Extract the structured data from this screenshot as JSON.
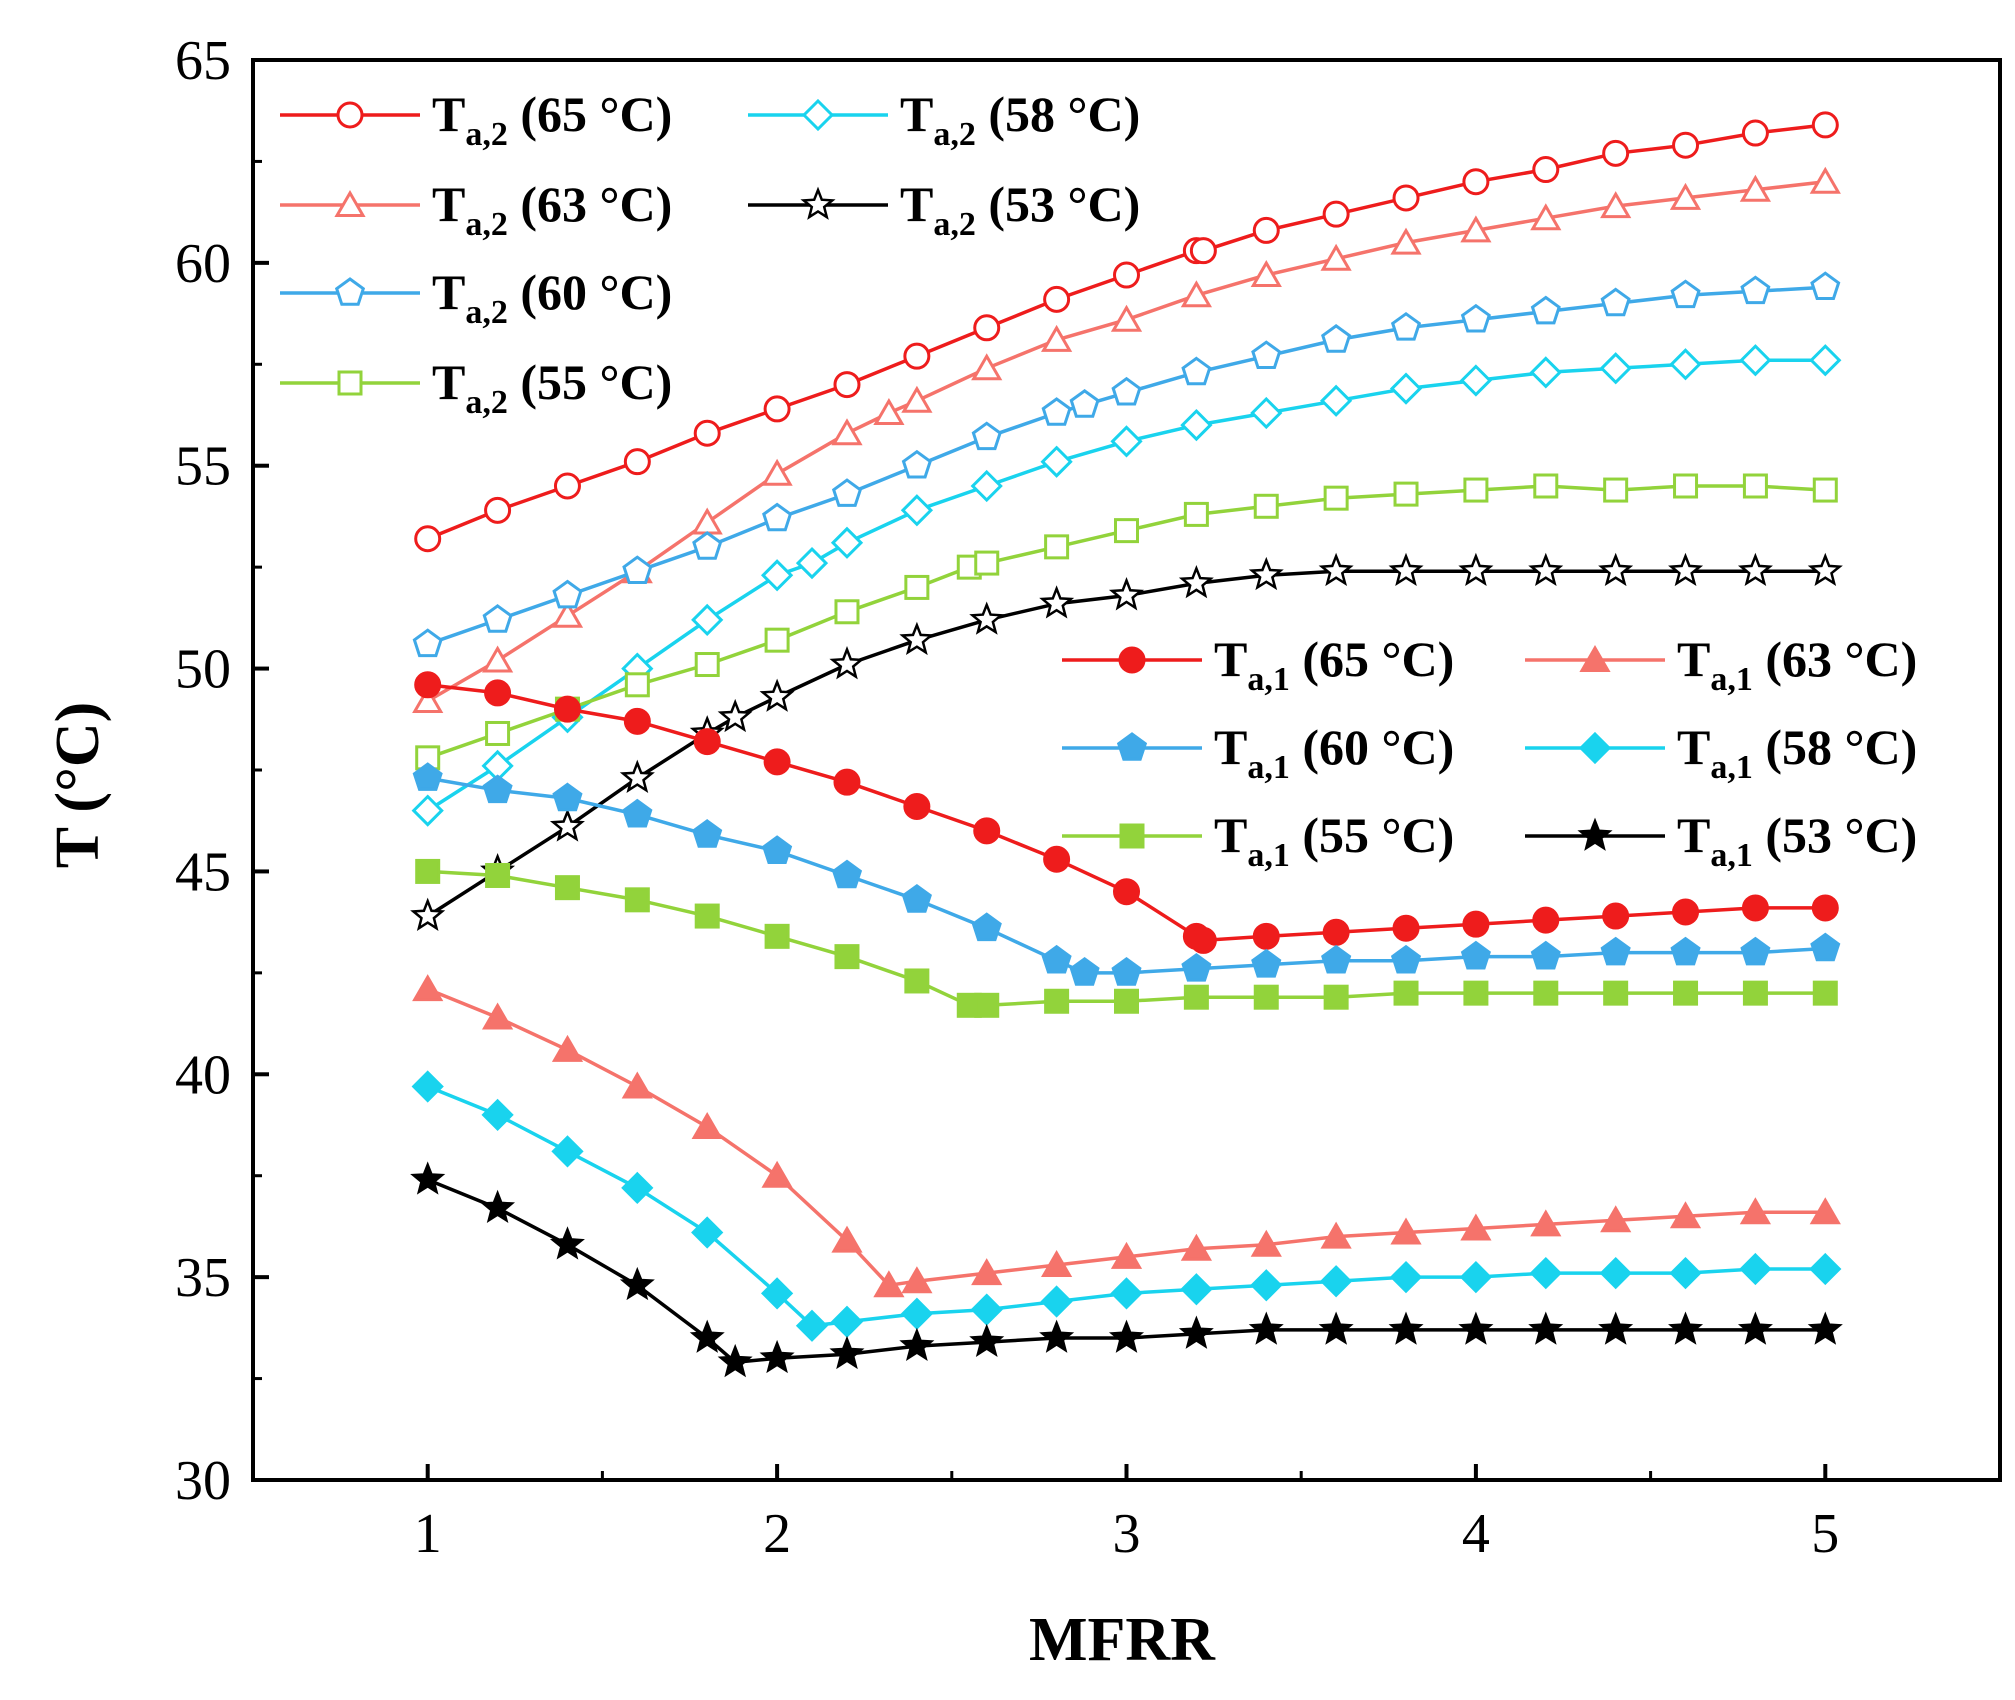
{
  "chart_data": {
    "type": "line",
    "title": "",
    "xlabel": "MFRR",
    "ylabel": "T (°C)",
    "xlim": [
      0.5,
      5.5
    ],
    "ylim": [
      30,
      65
    ],
    "x_ticks": [
      1,
      2,
      3,
      4,
      5
    ],
    "y_ticks": [
      30,
      35,
      40,
      45,
      50,
      55,
      60,
      65
    ],
    "grid": false,
    "legend_groups": [
      {
        "placement": "top-left",
        "series": [
          0,
          1,
          2,
          3,
          4,
          5
        ]
      },
      {
        "placement": "center-right",
        "series": [
          6,
          7,
          8,
          9,
          10,
          11
        ]
      }
    ],
    "series": [
      {
        "name": "Ta,2 (65 °C)",
        "label_main": "T",
        "label_sub": "a,2",
        "label_rest": " (65 °C)",
        "color": "#ee1c1c",
        "marker": "circle",
        "filled": false,
        "x": [
          1.0,
          1.2,
          1.4,
          1.6,
          1.8,
          2.0,
          2.2,
          2.4,
          2.6,
          2.8,
          3.0,
          3.2,
          3.22,
          3.4,
          3.6,
          3.8,
          4.0,
          4.2,
          4.4,
          4.6,
          4.8,
          5.0
        ],
        "y": [
          53.2,
          53.9,
          54.5,
          55.1,
          55.8,
          56.4,
          57.0,
          57.7,
          58.4,
          59.1,
          59.7,
          60.3,
          60.3,
          60.8,
          61.2,
          61.6,
          62.0,
          62.3,
          62.7,
          62.9,
          63.2,
          63.4
        ]
      },
      {
        "name": "Ta,2 (63 °C)",
        "label_main": "T",
        "label_sub": "a,2",
        "label_rest": " (63 °C)",
        "color": "#f5736b",
        "marker": "triangle",
        "filled": false,
        "x": [
          1.0,
          1.2,
          1.4,
          1.6,
          1.8,
          2.0,
          2.2,
          2.32,
          2.4,
          2.6,
          2.8,
          3.0,
          3.2,
          3.4,
          3.6,
          3.8,
          4.0,
          4.2,
          4.4,
          4.6,
          4.8,
          5.0
        ],
        "y": [
          49.2,
          50.2,
          51.3,
          52.4,
          53.6,
          54.8,
          55.8,
          56.3,
          56.6,
          57.4,
          58.1,
          58.6,
          59.2,
          59.7,
          60.1,
          60.5,
          60.8,
          61.1,
          61.4,
          61.6,
          61.8,
          62.0
        ]
      },
      {
        "name": "Ta,2 (60 °C)",
        "label_main": "T",
        "label_sub": "a,2",
        "label_rest": " (60 °C)",
        "color": "#3fa9e8",
        "marker": "pentagon",
        "filled": false,
        "x": [
          1.0,
          1.2,
          1.4,
          1.6,
          1.8,
          2.0,
          2.2,
          2.4,
          2.6,
          2.8,
          2.88,
          3.0,
          3.2,
          3.4,
          3.6,
          3.8,
          4.0,
          4.2,
          4.4,
          4.6,
          4.8,
          5.0
        ],
        "y": [
          50.6,
          51.2,
          51.8,
          52.4,
          53.0,
          53.7,
          54.3,
          55.0,
          55.7,
          56.3,
          56.5,
          56.8,
          57.3,
          57.7,
          58.1,
          58.4,
          58.6,
          58.8,
          59.0,
          59.2,
          59.3,
          59.4
        ]
      },
      {
        "name": "Ta,2 (58 °C)",
        "label_main": "T",
        "label_sub": "a,2",
        "label_rest": " (58 °C)",
        "color": "#19d3ee",
        "marker": "diamond",
        "filled": false,
        "x": [
          1.0,
          1.2,
          1.4,
          1.6,
          1.8,
          2.0,
          2.1,
          2.2,
          2.4,
          2.6,
          2.8,
          3.0,
          3.2,
          3.4,
          3.6,
          3.8,
          4.0,
          4.2,
          4.4,
          4.6,
          4.8,
          5.0
        ],
        "y": [
          46.5,
          47.6,
          48.8,
          50.0,
          51.2,
          52.3,
          52.6,
          53.1,
          53.9,
          54.5,
          55.1,
          55.6,
          56.0,
          56.3,
          56.6,
          56.9,
          57.1,
          57.3,
          57.4,
          57.5,
          57.6,
          57.6
        ]
      },
      {
        "name": "Ta,2 (55 °C)",
        "label_main": "T",
        "label_sub": "a,2",
        "label_rest": " (55 °C)",
        "color": "#92d33b",
        "marker": "square",
        "filled": false,
        "x": [
          1.0,
          1.2,
          1.4,
          1.6,
          1.8,
          2.0,
          2.2,
          2.4,
          2.55,
          2.6,
          2.8,
          3.0,
          3.2,
          3.4,
          3.6,
          3.8,
          4.0,
          4.2,
          4.4,
          4.6,
          4.8,
          5.0
        ],
        "y": [
          47.8,
          48.4,
          49.0,
          49.6,
          50.1,
          50.7,
          51.4,
          52.0,
          52.5,
          52.6,
          53.0,
          53.4,
          53.8,
          54.0,
          54.2,
          54.3,
          54.4,
          54.5,
          54.4,
          54.5,
          54.5,
          54.4
        ]
      },
      {
        "name": "Ta,2 (53 °C)",
        "label_main": "T",
        "label_sub": "a,2",
        "label_rest": " (53 °C)",
        "color": "#000000",
        "marker": "star",
        "filled": false,
        "x": [
          1.0,
          1.2,
          1.4,
          1.6,
          1.8,
          1.88,
          2.0,
          2.2,
          2.4,
          2.6,
          2.8,
          3.0,
          3.2,
          3.4,
          3.6,
          3.8,
          4.0,
          4.2,
          4.4,
          4.6,
          4.8,
          5.0
        ],
        "y": [
          43.9,
          45.0,
          46.1,
          47.3,
          48.4,
          48.8,
          49.3,
          50.1,
          50.7,
          51.2,
          51.6,
          51.8,
          52.1,
          52.3,
          52.4,
          52.4,
          52.4,
          52.4,
          52.4,
          52.4,
          52.4,
          52.4
        ]
      },
      {
        "name": "Ta,1 (65 °C)",
        "label_main": "T",
        "label_sub": "a,1",
        "label_rest": " (65 °C)",
        "color": "#ee1c1c",
        "marker": "circle",
        "filled": true,
        "x": [
          1.0,
          1.2,
          1.4,
          1.6,
          1.8,
          2.0,
          2.2,
          2.4,
          2.6,
          2.8,
          3.0,
          3.2,
          3.22,
          3.4,
          3.6,
          3.8,
          4.0,
          4.2,
          4.4,
          4.6,
          4.8,
          5.0
        ],
        "y": [
          49.6,
          49.4,
          49.0,
          48.7,
          48.2,
          47.7,
          47.2,
          46.6,
          46.0,
          45.3,
          44.5,
          43.4,
          43.3,
          43.4,
          43.5,
          43.6,
          43.7,
          43.8,
          43.9,
          44.0,
          44.1,
          44.1
        ]
      },
      {
        "name": "Ta,1 (63 °C)",
        "label_main": "T",
        "label_sub": "a,1",
        "label_rest": " (63 °C)",
        "color": "#f5736b",
        "marker": "triangle",
        "filled": true,
        "x": [
          1.0,
          1.2,
          1.4,
          1.6,
          1.8,
          2.0,
          2.2,
          2.32,
          2.4,
          2.6,
          2.8,
          3.0,
          3.2,
          3.4,
          3.6,
          3.8,
          4.0,
          4.2,
          4.4,
          4.6,
          4.8,
          5.0
        ],
        "y": [
          42.1,
          41.4,
          40.6,
          39.7,
          38.7,
          37.5,
          35.9,
          34.8,
          34.9,
          35.1,
          35.3,
          35.5,
          35.7,
          35.8,
          36.0,
          36.1,
          36.2,
          36.3,
          36.4,
          36.5,
          36.6,
          36.6
        ]
      },
      {
        "name": "Ta,1 (60 °C)",
        "label_main": "T",
        "label_sub": "a,1",
        "label_rest": " (60 °C)",
        "color": "#3fa9e8",
        "marker": "pentagon",
        "filled": true,
        "x": [
          1.0,
          1.2,
          1.4,
          1.6,
          1.8,
          2.0,
          2.2,
          2.4,
          2.6,
          2.8,
          2.88,
          3.0,
          3.2,
          3.4,
          3.6,
          3.8,
          4.0,
          4.2,
          4.4,
          4.6,
          4.8,
          5.0
        ],
        "y": [
          47.3,
          47.0,
          46.8,
          46.4,
          45.9,
          45.5,
          44.9,
          44.3,
          43.6,
          42.8,
          42.5,
          42.5,
          42.6,
          42.7,
          42.8,
          42.8,
          42.9,
          42.9,
          43.0,
          43.0,
          43.0,
          43.1
        ]
      },
      {
        "name": "Ta,1 (58 °C)",
        "label_main": "T",
        "label_sub": "a,1",
        "label_rest": " (58 °C)",
        "color": "#19d3ee",
        "marker": "diamond",
        "filled": true,
        "x": [
          1.0,
          1.2,
          1.4,
          1.6,
          1.8,
          2.0,
          2.1,
          2.2,
          2.4,
          2.6,
          2.8,
          3.0,
          3.2,
          3.4,
          3.6,
          3.8,
          4.0,
          4.2,
          4.4,
          4.6,
          4.8,
          5.0
        ],
        "y": [
          39.7,
          39.0,
          38.1,
          37.2,
          36.1,
          34.6,
          33.8,
          33.9,
          34.1,
          34.2,
          34.4,
          34.6,
          34.7,
          34.8,
          34.9,
          35.0,
          35.0,
          35.1,
          35.1,
          35.1,
          35.2,
          35.2
        ]
      },
      {
        "name": "Ta,1 (55 °C)",
        "label_main": "T",
        "label_sub": "a,1",
        "label_rest": " (55 °C)",
        "color": "#92d33b",
        "marker": "square",
        "filled": true,
        "x": [
          1.0,
          1.2,
          1.4,
          1.6,
          1.8,
          2.0,
          2.2,
          2.4,
          2.55,
          2.6,
          2.8,
          3.0,
          3.2,
          3.4,
          3.6,
          3.8,
          4.0,
          4.2,
          4.4,
          4.6,
          4.8,
          5.0
        ],
        "y": [
          45.0,
          44.9,
          44.6,
          44.3,
          43.9,
          43.4,
          42.9,
          42.3,
          41.7,
          41.7,
          41.8,
          41.8,
          41.9,
          41.9,
          41.9,
          42.0,
          42.0,
          42.0,
          42.0,
          42.0,
          42.0,
          42.0
        ]
      },
      {
        "name": "Ta,1 (53 °C)",
        "label_main": "T",
        "label_sub": "a,1",
        "label_rest": " (53 °C)",
        "color": "#000000",
        "marker": "star",
        "filled": true,
        "x": [
          1.0,
          1.2,
          1.4,
          1.6,
          1.8,
          1.88,
          2.0,
          2.2,
          2.4,
          2.6,
          2.8,
          3.0,
          3.2,
          3.4,
          3.6,
          3.8,
          4.0,
          4.2,
          4.4,
          4.6,
          4.8,
          5.0
        ],
        "y": [
          37.4,
          36.7,
          35.8,
          34.8,
          33.5,
          32.9,
          33.0,
          33.1,
          33.3,
          33.4,
          33.5,
          33.5,
          33.6,
          33.7,
          33.7,
          33.7,
          33.7,
          33.7,
          33.7,
          33.7,
          33.7,
          33.7
        ]
      }
    ]
  }
}
